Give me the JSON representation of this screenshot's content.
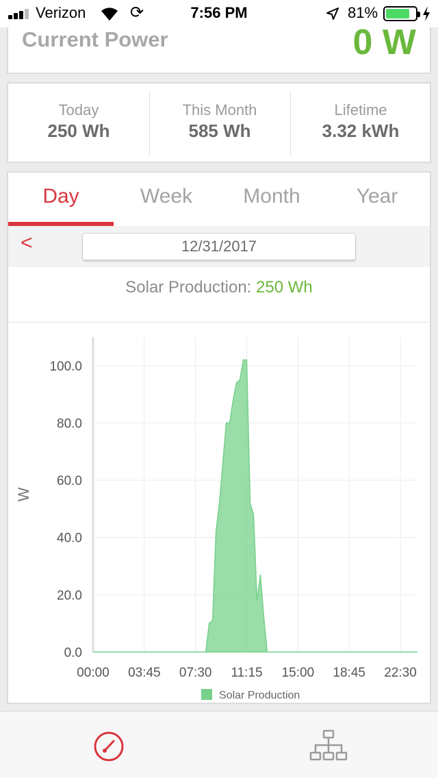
{
  "status_bar": {
    "carrier": "Verizon",
    "time": "7:56 PM",
    "battery_percent": "81%",
    "battery_level": 0.81,
    "icons": [
      "signal-icon",
      "wifi-icon",
      "sync-icon",
      "location-icon",
      "battery-icon",
      "charging-icon"
    ]
  },
  "power": {
    "label": "Current Power",
    "value": "0 W",
    "value_color": "#6ab83c"
  },
  "stats": [
    {
      "label": "Today",
      "value": "250 Wh"
    },
    {
      "label": "This Month",
      "value": "585 Wh"
    },
    {
      "label": "Lifetime",
      "value": "3.32 kWh"
    }
  ],
  "tabs": {
    "items": [
      "Day",
      "Week",
      "Month",
      "Year"
    ],
    "active": "Day",
    "active_color": "#d9363e"
  },
  "date_nav": {
    "prev_label": "<",
    "date": "12/31/2017"
  },
  "production": {
    "label": "Solar Production:",
    "value": "250 Wh"
  },
  "chart_data": {
    "type": "area",
    "ylabel": "W",
    "ylim": [
      0,
      110
    ],
    "y_ticks": [
      "0.0",
      "20.0",
      "40.0",
      "60.0",
      "80.0",
      "100.0"
    ],
    "x_ticks": [
      "00:00",
      "03:45",
      "07:30",
      "11:15",
      "15:00",
      "18:45",
      "22:30"
    ],
    "x_range_hours": [
      0,
      23.75
    ],
    "grid": true,
    "legend_position": "bottom",
    "series": [
      {
        "name": "Solar Production",
        "color": "#77d18b",
        "x": [
          "00:00",
          "08:15",
          "08:30",
          "08:45",
          "09:00",
          "09:15",
          "09:30",
          "09:45",
          "10:00",
          "10:15",
          "10:30",
          "10:45",
          "11:00",
          "11:15",
          "11:30",
          "11:45",
          "12:00",
          "12:15",
          "12:30",
          "12:45",
          "13:00",
          "13:15",
          "13:30",
          "23:45"
        ],
        "values": [
          0,
          0,
          10,
          11,
          42,
          52,
          66,
          80,
          80,
          88,
          94,
          95,
          102,
          102,
          52,
          48,
          18,
          27,
          12,
          0,
          0,
          0,
          0,
          0
        ]
      }
    ]
  },
  "bottom_nav": {
    "items": [
      "dashboard-icon",
      "network-icon"
    ],
    "active": "dashboard-icon"
  }
}
